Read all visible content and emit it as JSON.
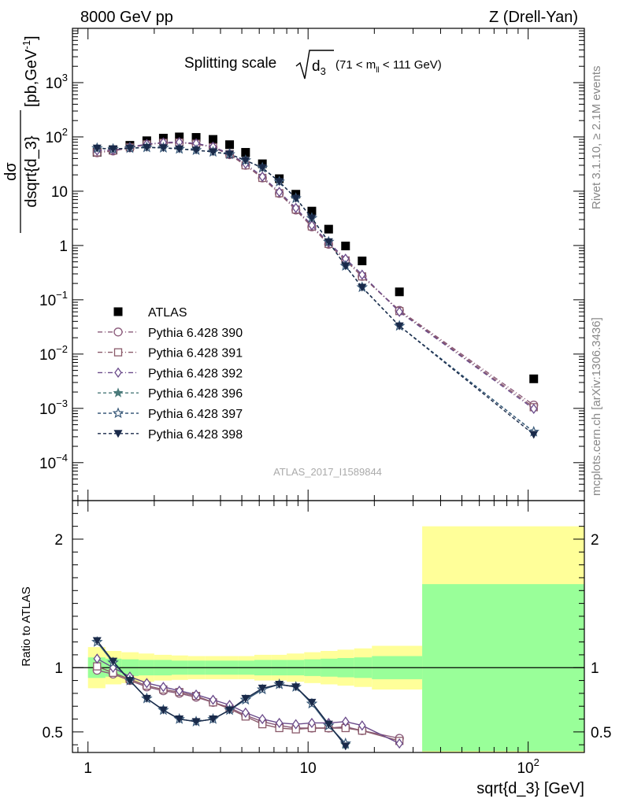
{
  "header": {
    "left": "8000 GeV pp",
    "right": "Z (Drell-Yan)"
  },
  "side_labels": {
    "rivet": "Rivet 3.1.10, ≥ 2.1M events",
    "mcplots": "mcplots.cern.ch [arXiv:1306.3436]"
  },
  "watermark": "ATLAS_2017_I1589844",
  "chart_data": [
    {
      "type": "scatter",
      "title": {
        "prefix": "Splitting scale",
        "var": "d",
        "sub": "3",
        "cut_open": "(71 < m",
        "cut_sub": "ll",
        "cut_close": " < 111 GeV)"
      },
      "ylabel": {
        "num": "dσ",
        "den": "dsqrt{d_3}",
        "units": "[pb,GeV",
        "units_exp": "-1",
        "units_close": "]"
      },
      "xscale": "log",
      "yscale": "log",
      "xlim": [
        0.85,
        180
      ],
      "ylim": [
        2e-05,
        10000
      ],
      "y_ticks": [
        {
          "v": 1000,
          "base": "10",
          "exp": "3"
        },
        {
          "v": 100,
          "base": "10",
          "exp": "2"
        },
        {
          "v": 10,
          "base": "10",
          "exp": ""
        },
        {
          "v": 1,
          "base": "1",
          "exp": ""
        },
        {
          "v": 0.1,
          "base": "10",
          "exp": "−1"
        },
        {
          "v": 0.01,
          "base": "10",
          "exp": "−2"
        },
        {
          "v": 0.001,
          "base": "10",
          "exp": "−3"
        },
        {
          "v": 0.0001,
          "base": "10",
          "exp": "−4"
        }
      ],
      "legend_position": "lower-left",
      "series": [
        {
          "name": "ATLAS",
          "color": "#000000",
          "marker": "square",
          "dash": "",
          "x": [
            1.1,
            1.3,
            1.55,
            1.85,
            2.2,
            2.6,
            3.1,
            3.7,
            4.4,
            5.2,
            6.2,
            7.4,
            8.8,
            10.4,
            12.4,
            14.8,
            17.6,
            26,
            106
          ],
          "y": [
            52,
            58,
            70,
            85,
            95,
            100,
            98,
            90,
            72,
            52,
            32,
            17,
            8.8,
            4.3,
            2.0,
            0.98,
            0.52,
            0.14,
            0.0035
          ]
        },
        {
          "name": "Pythia 6.428 390",
          "color": "#8a5a7a",
          "marker": "circle",
          "dash": "6,3,1,3",
          "x": [
            1.1,
            1.3,
            1.55,
            1.85,
            2.2,
            2.6,
            3.1,
            3.7,
            4.4,
            5.2,
            6.2,
            7.4,
            8.8,
            10.4,
            12.4,
            14.8,
            17.6,
            26,
            106
          ],
          "y": [
            51,
            55,
            63,
            72,
            77,
            78,
            74,
            64,
            47,
            30,
            17.5,
            9.1,
            4.5,
            2.2,
            1.05,
            0.53,
            0.27,
            0.064,
            0.00115
          ]
        },
        {
          "name": "Pythia 6.428 391",
          "color": "#8a5a6a",
          "marker": "square-open",
          "dash": "6,3,1,3",
          "x": [
            1.1,
            1.3,
            1.55,
            1.85,
            2.2,
            2.6,
            3.1,
            3.7,
            4.4,
            5.2,
            6.2,
            7.4,
            8.8,
            10.4,
            12.4,
            14.8,
            17.6,
            26,
            106
          ],
          "y": [
            52,
            56,
            64,
            73,
            78,
            79,
            75,
            65,
            48,
            30,
            17.6,
            9.2,
            4.6,
            2.25,
            1.07,
            0.53,
            0.27,
            0.062,
            0.00105
          ]
        },
        {
          "name": "Pythia 6.428 392",
          "color": "#6a4a8a",
          "marker": "diamond-open",
          "dash": "6,3,1,3",
          "x": [
            1.1,
            1.3,
            1.55,
            1.85,
            2.2,
            2.6,
            3.1,
            3.7,
            4.4,
            5.2,
            6.2,
            7.4,
            8.8,
            10.4,
            12.4,
            14.8,
            17.6,
            26,
            106
          ],
          "y": [
            56,
            57,
            65,
            74,
            79,
            80,
            76,
            66,
            49,
            32,
            18.5,
            9.7,
            4.9,
            2.35,
            1.13,
            0.57,
            0.29,
            0.06,
            0.00098
          ]
        },
        {
          "name": "Pythia 6.428 396",
          "color": "#4a7a7a",
          "marker": "star-filled",
          "dash": "4,3",
          "x": [
            1.1,
            1.3,
            1.55,
            1.85,
            2.2,
            2.6,
            3.1,
            3.7,
            4.4,
            5.2,
            6.2,
            7.4,
            8.8,
            10.4,
            12.4,
            14.8,
            17.6,
            26,
            106
          ],
          "y": [
            62,
            60,
            62,
            64,
            63,
            60,
            57,
            53,
            48,
            37,
            27,
            15,
            7.4,
            3.2,
            1.17,
            0.42,
            0.17,
            0.033,
            0.00037
          ]
        },
        {
          "name": "Pythia 6.428 397",
          "color": "#3a5a7a",
          "marker": "star-open",
          "dash": "4,3",
          "x": [
            1.1,
            1.3,
            1.55,
            1.85,
            2.2,
            2.6,
            3.1,
            3.7,
            4.4,
            5.2,
            6.2,
            7.4,
            8.8,
            10.4,
            12.4,
            14.8,
            17.6,
            26,
            106
          ],
          "y": [
            62,
            60,
            62,
            64,
            63,
            60,
            57,
            53,
            48,
            37,
            27,
            15,
            7.4,
            3.2,
            1.17,
            0.42,
            0.17,
            0.033,
            0.00037
          ]
        },
        {
          "name": "Pythia 6.428 398",
          "color": "#1a2a4a",
          "marker": "triangle-down",
          "dash": "4,3",
          "x": [
            1.1,
            1.3,
            1.55,
            1.85,
            2.2,
            2.6,
            3.1,
            3.7,
            4.4,
            5.2,
            6.2,
            7.4,
            8.8,
            10.4,
            12.4,
            14.8,
            17.6,
            26,
            106
          ],
          "y": [
            62,
            60,
            62,
            64,
            63,
            60,
            57,
            53,
            48,
            37,
            27,
            15,
            7.4,
            3.2,
            1.17,
            0.42,
            0.17,
            0.033,
            0.00033
          ]
        }
      ]
    },
    {
      "type": "scatter",
      "ylabel": "Ratio to ATLAS",
      "xlabel": "sqrt{d_3} [GeV]",
      "xscale": "log",
      "xlim": [
        0.85,
        180
      ],
      "ylim": [
        0.34,
        2.3
      ],
      "y_ticks": [
        {
          "v": 0.5,
          "label": "0.5"
        },
        {
          "v": 1,
          "label": "1"
        },
        {
          "v": 2,
          "label": "2"
        }
      ],
      "x_ticks": [
        {
          "v": 1,
          "base": "1",
          "exp": ""
        },
        {
          "v": 10,
          "base": "10",
          "exp": ""
        },
        {
          "v": 100,
          "base": "10",
          "exp": "2"
        }
      ],
      "reference_line": 1,
      "bands": {
        "stat_color": "#99ff99",
        "total_color": "#ffff99",
        "bins": [
          {
            "lo": 1.0,
            "hi": 1.2,
            "stat": 0.08,
            "total": 0.16
          },
          {
            "lo": 1.2,
            "hi": 1.42,
            "stat": 0.07,
            "total": 0.13
          },
          {
            "lo": 1.42,
            "hi": 1.7,
            "stat": 0.065,
            "total": 0.12
          },
          {
            "lo": 1.7,
            "hi": 2.0,
            "stat": 0.06,
            "total": 0.11
          },
          {
            "lo": 2.0,
            "hi": 2.4,
            "stat": 0.06,
            "total": 0.1
          },
          {
            "lo": 2.4,
            "hi": 2.85,
            "stat": 0.055,
            "total": 0.095
          },
          {
            "lo": 2.85,
            "hi": 3.4,
            "stat": 0.055,
            "total": 0.09
          },
          {
            "lo": 3.4,
            "hi": 4.0,
            "stat": 0.055,
            "total": 0.09
          },
          {
            "lo": 4.0,
            "hi": 4.8,
            "stat": 0.055,
            "total": 0.09
          },
          {
            "lo": 4.8,
            "hi": 5.7,
            "stat": 0.055,
            "total": 0.09
          },
          {
            "lo": 5.7,
            "hi": 6.8,
            "stat": 0.06,
            "total": 0.1
          },
          {
            "lo": 6.8,
            "hi": 8.0,
            "stat": 0.06,
            "total": 0.1
          },
          {
            "lo": 8.0,
            "hi": 9.6,
            "stat": 0.06,
            "total": 0.11
          },
          {
            "lo": 9.6,
            "hi": 11.4,
            "stat": 0.065,
            "total": 0.12
          },
          {
            "lo": 11.4,
            "hi": 13.6,
            "stat": 0.07,
            "total": 0.13
          },
          {
            "lo": 13.6,
            "hi": 16.2,
            "stat": 0.075,
            "total": 0.14
          },
          {
            "lo": 16.2,
            "hi": 19.5,
            "stat": 0.08,
            "total": 0.15
          },
          {
            "lo": 19.5,
            "hi": 33,
            "stat": 0.09,
            "total": 0.17
          },
          {
            "lo": 33,
            "hi": 180,
            "stat": 0.65,
            "total": 1.1
          }
        ]
      },
      "series": [
        {
          "name": "Pythia 6.428 390",
          "color": "#8a5a7a",
          "marker": "circle",
          "x": [
            1.1,
            1.3,
            1.55,
            1.85,
            2.2,
            2.6,
            3.1,
            3.7,
            4.4,
            5.2,
            6.2,
            7.4,
            8.8,
            10.4,
            12.4,
            14.8,
            17.6,
            26
          ],
          "y": [
            0.98,
            0.95,
            0.9,
            0.85,
            0.82,
            0.8,
            0.77,
            0.73,
            0.69,
            0.63,
            0.58,
            0.55,
            0.53,
            0.53,
            0.53,
            0.54,
            0.51,
            0.45
          ]
        },
        {
          "name": "Pythia 6.428 391",
          "color": "#8a5a6a",
          "marker": "square-open",
          "x": [
            1.1,
            1.3,
            1.55,
            1.85,
            2.2,
            2.6,
            3.1,
            3.7,
            4.4,
            5.2,
            6.2,
            7.4,
            8.8,
            10.4,
            12.4,
            14.8,
            17.6,
            26
          ],
          "y": [
            1.01,
            0.96,
            0.91,
            0.86,
            0.83,
            0.81,
            0.78,
            0.73,
            0.68,
            0.62,
            0.56,
            0.53,
            0.52,
            0.53,
            0.53,
            0.53,
            0.51,
            0.43
          ]
        },
        {
          "name": "Pythia 6.428 392",
          "color": "#6a4a8a",
          "marker": "diamond-open",
          "x": [
            1.1,
            1.3,
            1.55,
            1.85,
            2.2,
            2.6,
            3.1,
            3.7,
            4.4,
            5.2,
            6.2,
            7.4,
            8.8,
            10.4,
            12.4,
            14.8,
            17.6,
            26
          ],
          "y": [
            1.07,
            1.0,
            0.93,
            0.88,
            0.85,
            0.82,
            0.79,
            0.75,
            0.71,
            0.65,
            0.6,
            0.57,
            0.56,
            0.57,
            0.57,
            0.58,
            0.55,
            0.41
          ]
        },
        {
          "name": "Pythia 6.428 396",
          "color": "#4a7a7a",
          "marker": "star-filled",
          "x": [
            1.1,
            1.3,
            1.55,
            1.85,
            2.2,
            2.6,
            3.1,
            3.7,
            4.4,
            5.2,
            6.2,
            7.4,
            8.8,
            10.4,
            12.4,
            14.8
          ],
          "y": [
            1.2,
            1.04,
            0.9,
            0.76,
            0.67,
            0.6,
            0.58,
            0.6,
            0.67,
            0.75,
            0.83,
            0.87,
            0.85,
            0.72,
            0.55,
            0.4
          ]
        },
        {
          "name": "Pythia 6.428 397",
          "color": "#3a5a7a",
          "marker": "star-open",
          "x": [
            1.1,
            1.3,
            1.55,
            1.85,
            2.2,
            2.6,
            3.1,
            3.7,
            4.4,
            5.2,
            6.2,
            7.4,
            8.8,
            10.4,
            12.4,
            14.8
          ],
          "y": [
            1.2,
            1.04,
            0.9,
            0.76,
            0.67,
            0.6,
            0.58,
            0.6,
            0.67,
            0.75,
            0.83,
            0.87,
            0.85,
            0.72,
            0.55,
            0.41
          ]
        },
        {
          "name": "Pythia 6.428 398",
          "color": "#1a2a4a",
          "marker": "triangle-down",
          "x": [
            1.1,
            1.3,
            1.55,
            1.85,
            2.2,
            2.6,
            3.1,
            3.7,
            4.4,
            5.2,
            6.2,
            7.4,
            8.8,
            10.4,
            12.4,
            14.8
          ],
          "y": [
            1.21,
            1.05,
            0.9,
            0.76,
            0.67,
            0.6,
            0.58,
            0.6,
            0.67,
            0.76,
            0.84,
            0.87,
            0.85,
            0.73,
            0.56,
            0.39
          ]
        }
      ]
    }
  ]
}
